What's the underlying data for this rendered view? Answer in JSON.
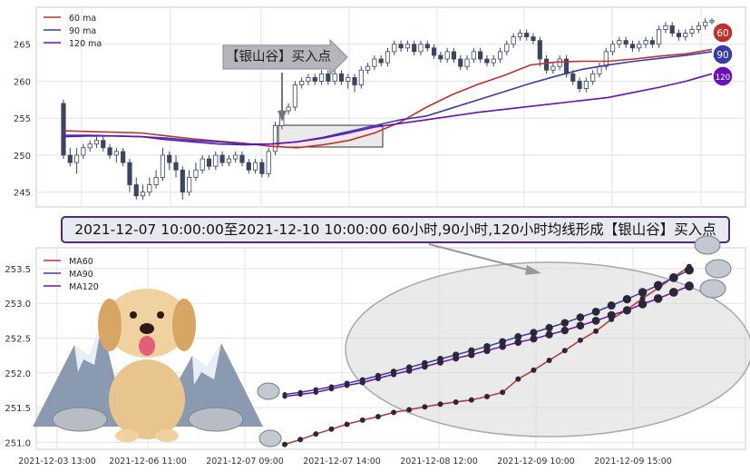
{
  "colors": {
    "ma60": "#c03030",
    "ma90": "#3a3aa8",
    "ma120": "#6a10b8",
    "candle": "#3b4560",
    "annot_border": "#4d2a80"
  },
  "callout": {
    "label": "【银山谷】买入点"
  },
  "annotation": {
    "text": "2021-12-07 10:00:00至2021-12-10 10:00:00 60小时,90小时,120小时均线形成【银山谷】买入点"
  },
  "badges": [
    {
      "text": "60",
      "color": "#c03030"
    },
    {
      "text": "90",
      "color": "#3a3aa8"
    },
    {
      "text": "120",
      "color": "#6a10b8"
    }
  ],
  "chart_data": [
    {
      "type": "candlestick",
      "title": "",
      "legend": {
        "placement": "top-left",
        "entries": [
          "60 ma",
          "90 ma",
          "120 ma"
        ]
      },
      "grid": true,
      "ylim": [
        243,
        270
      ],
      "yticks": [
        245,
        250,
        255,
        260,
        265
      ],
      "candles": [
        [
          257,
          250,
          257.5,
          249.5
        ],
        [
          250,
          249,
          251,
          248.5
        ],
        [
          249,
          250,
          251,
          247.5
        ],
        [
          250,
          251,
          251.5,
          249.5
        ],
        [
          251,
          251.5,
          252,
          250.5
        ],
        [
          251.5,
          252,
          252.5,
          251
        ],
        [
          252,
          251,
          252.5,
          250.5
        ],
        [
          251,
          250,
          251.5,
          249.5
        ],
        [
          250,
          250.5,
          251,
          249
        ],
        [
          250.5,
          249,
          251,
          248.5
        ],
        [
          249,
          246,
          249.5,
          245
        ],
        [
          246,
          244.5,
          247,
          244
        ],
        [
          244.5,
          245,
          246,
          244
        ],
        [
          245,
          246,
          247,
          244.5
        ],
        [
          246,
          247,
          248,
          245.5
        ],
        [
          247,
          250,
          251,
          246.5
        ],
        [
          250,
          249,
          250.5,
          248
        ],
        [
          249,
          248,
          250,
          247
        ],
        [
          248,
          245,
          248.5,
          244
        ],
        [
          245,
          247,
          248,
          244.5
        ],
        [
          247,
          248,
          249,
          246.5
        ],
        [
          248,
          249.5,
          250,
          247.5
        ],
        [
          249.5,
          248.5,
          250,
          248
        ],
        [
          248.5,
          250,
          250.5,
          248
        ],
        [
          250,
          249,
          250.5,
          248.5
        ],
        [
          249,
          249.5,
          250,
          248.5
        ],
        [
          249.5,
          250,
          250.5,
          249
        ],
        [
          250,
          249,
          250.5,
          248.5
        ],
        [
          249,
          248,
          249.5,
          247.5
        ],
        [
          248,
          249,
          249.5,
          247.5
        ],
        [
          249,
          247.5,
          249.5,
          247
        ],
        [
          247.5,
          250.5,
          251,
          247
        ],
        [
          250.5,
          254,
          254.5,
          250
        ],
        [
          254,
          256,
          256.5,
          253.5
        ],
        [
          256,
          256.5,
          257,
          255.5
        ],
        [
          256.5,
          259.5,
          260,
          256
        ],
        [
          259.5,
          260,
          260.5,
          259
        ],
        [
          260,
          260.5,
          261,
          259.5
        ],
        [
          260.5,
          260,
          261,
          259.5
        ],
        [
          260,
          261,
          261.5,
          259.5
        ],
        [
          261,
          260,
          261.5,
          259.5
        ],
        [
          260,
          261,
          261.5,
          259.5
        ],
        [
          261,
          260,
          261.5,
          259.5
        ],
        [
          260,
          260.5,
          261,
          259
        ],
        [
          260.5,
          259.5,
          261,
          258.5
        ],
        [
          259.5,
          261.5,
          262,
          259
        ],
        [
          261.5,
          262,
          262.5,
          261
        ],
        [
          262,
          263,
          263.5,
          261.5
        ],
        [
          263,
          262.5,
          263.5,
          262
        ],
        [
          262.5,
          264,
          264.5,
          262
        ],
        [
          264,
          265,
          265.5,
          263.5
        ],
        [
          265,
          264.5,
          265.5,
          264
        ],
        [
          264.5,
          265,
          265.5,
          264
        ],
        [
          265,
          264,
          265.5,
          263.5
        ],
        [
          264,
          265,
          265.5,
          263.5
        ],
        [
          265,
          264.5,
          265.5,
          264
        ],
        [
          264.5,
          263.5,
          265,
          263
        ],
        [
          263.5,
          263,
          264,
          262.5
        ],
        [
          263,
          264,
          264.5,
          262.5
        ],
        [
          264,
          263,
          264.5,
          262.5
        ],
        [
          263,
          262,
          263.5,
          261.5
        ],
        [
          262,
          263,
          263.5,
          261.5
        ],
        [
          263,
          264,
          264.5,
          262.5
        ],
        [
          264,
          263,
          264.5,
          262.5
        ],
        [
          263,
          262.5,
          263.5,
          262
        ],
        [
          262.5,
          263,
          263.5,
          262
        ],
        [
          263,
          264,
          264.5,
          262.5
        ],
        [
          264,
          265,
          265.5,
          263.5
        ],
        [
          265,
          266,
          266.5,
          264.5
        ],
        [
          266,
          266.5,
          267,
          265.5
        ],
        [
          266.5,
          266,
          267,
          265.5
        ],
        [
          266,
          265.5,
          266.5,
          265
        ],
        [
          265.5,
          263,
          266,
          262
        ],
        [
          263,
          261.5,
          263.5,
          261
        ],
        [
          261.5,
          262,
          262.5,
          261
        ],
        [
          262,
          263,
          263.5,
          261.5
        ],
        [
          263,
          261,
          263.5,
          260.5
        ],
        [
          261,
          260,
          261.5,
          259.5
        ],
        [
          260,
          259,
          260.5,
          258.5
        ],
        [
          259,
          260,
          260.5,
          258.5
        ],
        [
          260,
          261,
          261.5,
          259.5
        ],
        [
          261,
          262,
          262.5,
          260.5
        ],
        [
          262,
          264,
          264.5,
          261.5
        ],
        [
          264,
          265,
          265.5,
          263.5
        ],
        [
          265,
          265.5,
          266,
          264.5
        ],
        [
          265.5,
          265,
          266,
          264.5
        ],
        [
          265,
          264.5,
          265.5,
          264
        ],
        [
          264.5,
          265,
          265.5,
          264
        ],
        [
          265,
          265.5,
          266,
          264.5
        ],
        [
          265.5,
          265,
          266,
          264.5
        ],
        [
          265,
          267,
          267.5,
          264.5
        ],
        [
          267,
          267.5,
          268,
          266.5
        ],
        [
          267.5,
          266.5,
          268,
          266
        ],
        [
          266.5,
          266,
          267,
          265.5
        ],
        [
          266,
          266.5,
          267,
          265.5
        ],
        [
          266.5,
          267,
          267.5,
          266
        ],
        [
          267,
          267.5,
          268,
          266.5
        ],
        [
          267.5,
          268,
          268.5,
          267
        ],
        [
          268,
          268.2,
          268.5,
          267.7
        ]
      ],
      "ma60": [
        253.3,
        253.2,
        253.1,
        253,
        252.6,
        252.2,
        251.9,
        251.6,
        251.2,
        251,
        251.4,
        252,
        253,
        254.5,
        256.5,
        258.2,
        259.6,
        260.8,
        262.2,
        262.6,
        262.7,
        262.7,
        263,
        263.4,
        263.7,
        264.3
      ],
      "ma90": [
        252.7,
        252.7,
        252.6,
        252.5,
        252.3,
        252,
        251.8,
        251.5,
        251.5,
        251.8,
        252.4,
        253.2,
        254,
        254.8,
        255.3,
        256.4,
        257.5,
        258.6,
        259.7,
        260.7,
        261.6,
        262.2,
        262.7,
        263.1,
        263.5,
        264
      ],
      "ma120": [
        252.5,
        252.6,
        252.6,
        252.5,
        252.1,
        251.8,
        251.5,
        251.4,
        251.5,
        251.8,
        252.3,
        253,
        253.8,
        254.3,
        254.8,
        255.3,
        255.8,
        256.2,
        256.6,
        257,
        257.4,
        257.8,
        258.5,
        259.2,
        260,
        261
      ]
    },
    {
      "type": "line",
      "title": "",
      "legend": {
        "placement": "top-left",
        "entries": [
          "MA60",
          "MA90",
          "MA120"
        ]
      },
      "grid": true,
      "ylim": [
        250.9,
        253.8
      ],
      "yticks": [
        "251.0",
        "251.5",
        "252.0",
        "252.5",
        "253.0",
        "253.5"
      ],
      "x_tick_labels": [
        "2021-12-03 13:00",
        "2021-12-06 11:00",
        "2021-12-07 09:00",
        "2021-12-07 14:00",
        "2021-12-08 12:00",
        "2021-12-09 10:00",
        "2021-12-09 15:00"
      ],
      "series": [
        {
          "name": "MA60",
          "values": [
            250.97,
            251.04,
            251.12,
            251.19,
            251.26,
            251.32,
            251.37,
            251.43,
            251.47,
            251.51,
            251.55,
            251.58,
            251.61,
            251.66,
            251.72,
            251.91,
            252.04,
            252.18,
            252.32,
            252.47,
            252.6,
            252.77,
            252.91,
            253.07,
            253.22,
            253.38,
            253.53
          ]
        },
        {
          "name": "MA90",
          "values": [
            251.69,
            251.72,
            251.76,
            251.8,
            251.85,
            251.9,
            251.96,
            252.02,
            252.08,
            252.14,
            252.2,
            252.26,
            252.32,
            252.38,
            252.45,
            252.52,
            252.58,
            252.65,
            252.72,
            252.8,
            252.88,
            252.97,
            253.06,
            253.16,
            253.26,
            253.37,
            253.48
          ]
        },
        {
          "name": "MA120",
          "values": [
            251.66,
            251.69,
            251.72,
            251.77,
            251.82,
            251.86,
            251.92,
            251.98,
            252.03,
            252.09,
            252.15,
            252.21,
            252.26,
            252.32,
            252.38,
            252.44,
            252.49,
            252.55,
            252.61,
            252.68,
            252.75,
            252.83,
            252.9,
            252.99,
            253.07,
            253.16,
            253.25
          ]
        }
      ]
    }
  ]
}
